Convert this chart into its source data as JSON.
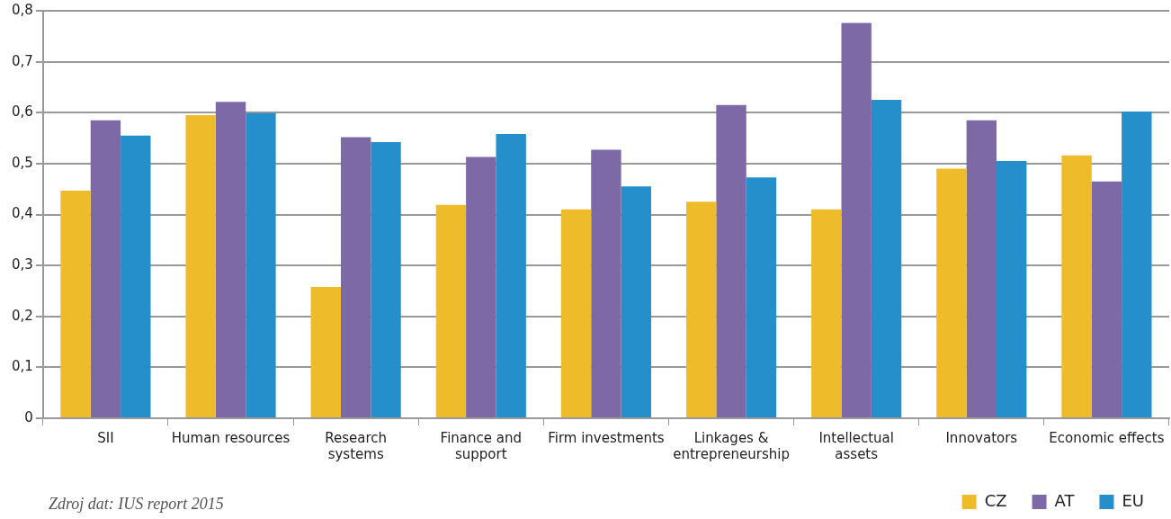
{
  "chart_data": {
    "type": "bar",
    "categories": [
      "SII",
      "Human resources",
      "Research\nsystems",
      "Finance and\nsupport",
      "Firm investments",
      "Linkages &\nentrepreneurship",
      "Intellectual\nassets",
      "Innovators",
      "Economic effects"
    ],
    "series": [
      {
        "name": "CZ",
        "color": "#eebc2b",
        "values": [
          0.447,
          0.595,
          0.258,
          0.419,
          0.41,
          0.425,
          0.41,
          0.49,
          0.516
        ]
      },
      {
        "name": "AT",
        "color": "#7d69a6",
        "values": [
          0.585,
          0.621,
          0.552,
          0.513,
          0.527,
          0.615,
          0.776,
          0.585,
          0.465
        ]
      },
      {
        "name": "EU",
        "color": "#258fcc",
        "values": [
          0.555,
          0.599,
          0.542,
          0.558,
          0.455,
          0.473,
          0.625,
          0.505,
          0.602
        ]
      }
    ],
    "ylim": [
      0,
      0.8
    ],
    "yticks": [
      {
        "value": 0,
        "label": "0"
      },
      {
        "value": 0.1,
        "label": "0,1"
      },
      {
        "value": 0.2,
        "label": "0,2"
      },
      {
        "value": 0.3,
        "label": "0,3"
      },
      {
        "value": 0.4,
        "label": "0,4"
      },
      {
        "value": 0.5,
        "label": "0,5"
      },
      {
        "value": 0.6,
        "label": "0,6"
      },
      {
        "value": 0.7,
        "label": "0,7"
      },
      {
        "value": 0.8,
        "label": "0,8"
      }
    ],
    "grid": "y",
    "legend": "bottom right",
    "annotations": [
      "Zdroj dat: IUS report 2015"
    ]
  }
}
